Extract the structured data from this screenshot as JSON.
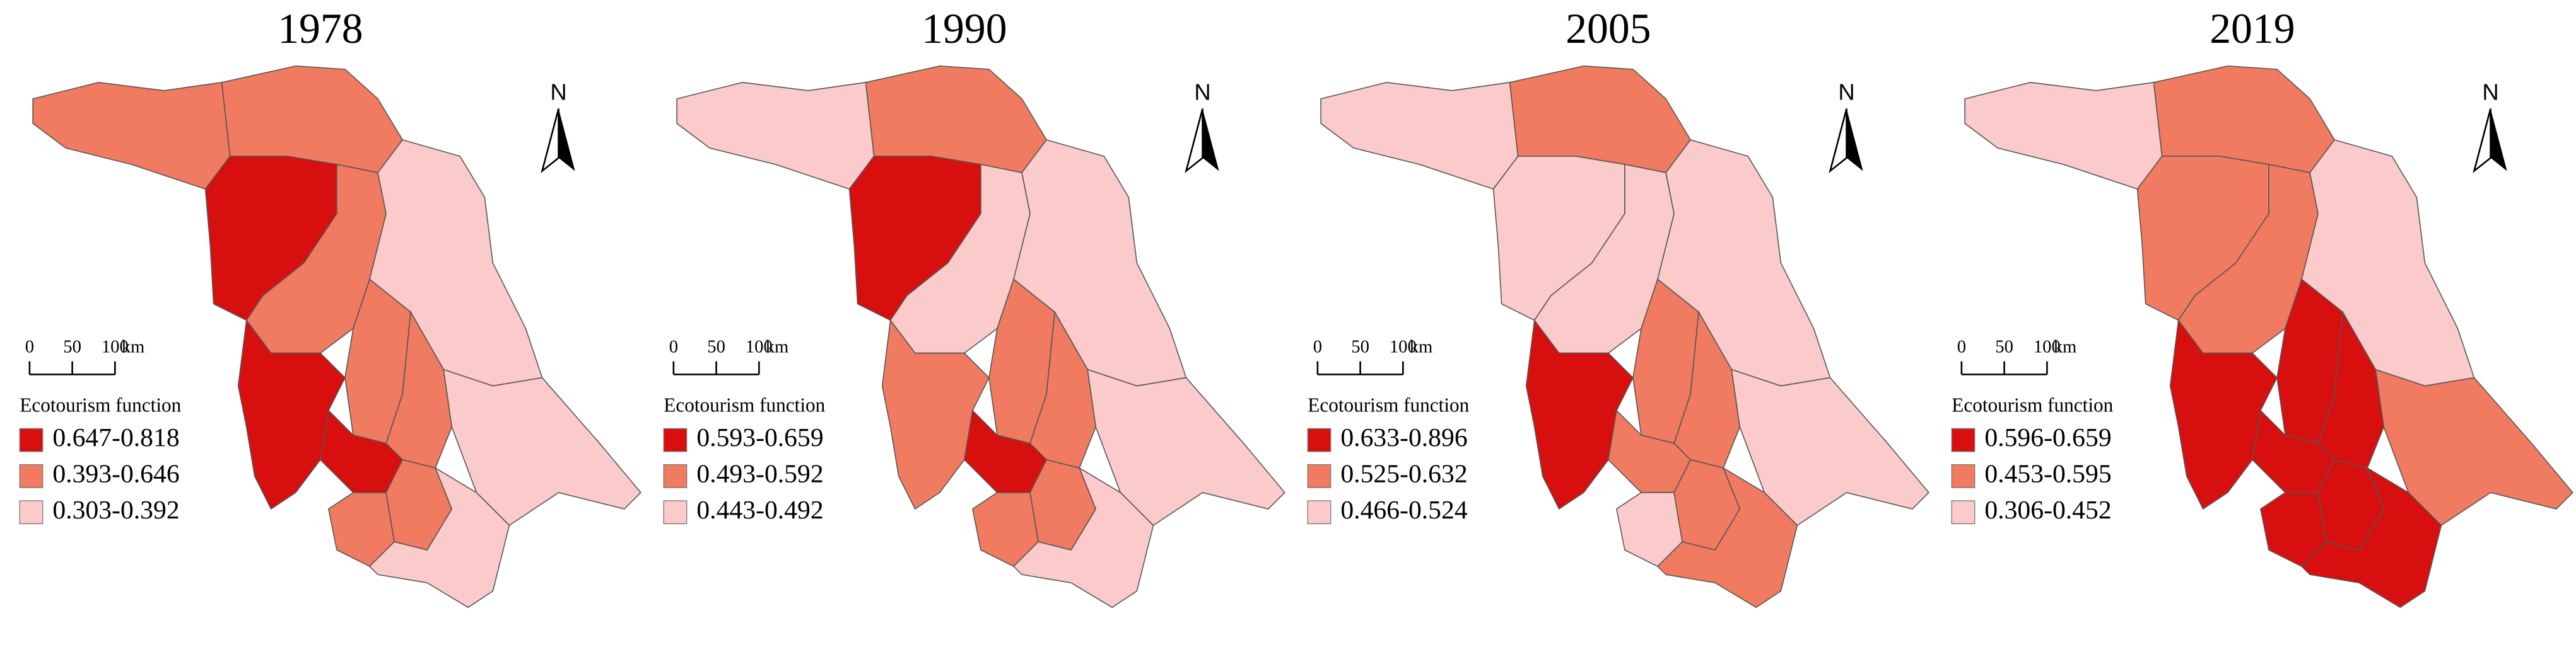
{
  "panels": [
    {
      "title": "1978",
      "north": "N",
      "scale_bar": {
        "ticks": [
          0,
          50,
          100
        ],
        "unit": "km"
      },
      "legend": {
        "title": "Ecotourism function",
        "items": [
          {
            "label": "0.647-0.818",
            "color": "#d7100f"
          },
          {
            "label": "0.393-0.646",
            "color": "#f07b60"
          },
          {
            "label": "0.303-0.392",
            "color": "#fbcaca"
          }
        ]
      }
    },
    {
      "title": "1990",
      "north": "N",
      "scale_bar": {
        "ticks": [
          0,
          50,
          100
        ],
        "unit": "km"
      },
      "legend": {
        "title": "Ecotourism function",
        "items": [
          {
            "label": "0.593-0.659",
            "color": "#d7100f"
          },
          {
            "label": "0.493-0.592",
            "color": "#f07b60"
          },
          {
            "label": "0.443-0.492",
            "color": "#fbcaca"
          }
        ]
      }
    },
    {
      "title": "2005",
      "north": "N",
      "scale_bar": {
        "ticks": [
          0,
          50,
          100
        ],
        "unit": "km"
      },
      "legend": {
        "title": "Ecotourism function",
        "items": [
          {
            "label": "0.633-0.896",
            "color": "#d7100f"
          },
          {
            "label": "0.525-0.632",
            "color": "#f07b60"
          },
          {
            "label": "0.466-0.524",
            "color": "#fbcaca"
          }
        ]
      }
    },
    {
      "title": "2019",
      "north": "N",
      "scale_bar": {
        "ticks": [
          0,
          50,
          100
        ],
        "unit": "km"
      },
      "legend": {
        "title": "Ecotourism function",
        "items": [
          {
            "label": "0.596-0.659",
            "color": "#d7100f"
          },
          {
            "label": "0.453-0.595",
            "color": "#f07b60"
          },
          {
            "label": "0.306-0.452",
            "color": "#fbcaca"
          }
        ]
      }
    }
  ]
}
